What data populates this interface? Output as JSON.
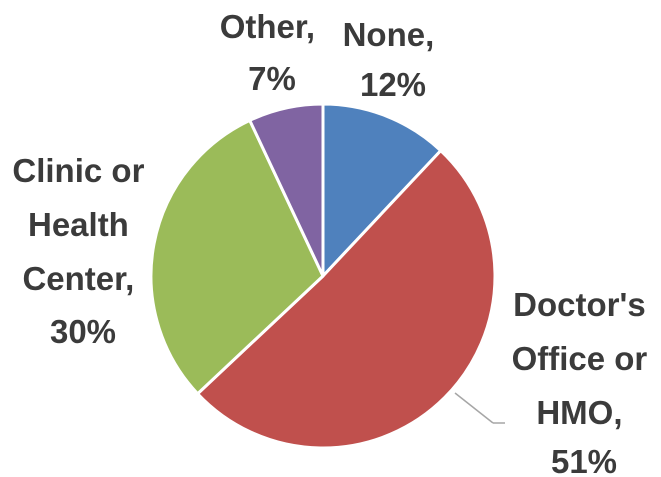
{
  "chart_data": {
    "type": "pie",
    "title": "",
    "start_angle_deg": 0,
    "direction": "clockwise",
    "slices": [
      {
        "label": "None",
        "value": 12,
        "label_text": "12%",
        "color": "#4f81bd"
      },
      {
        "label": "Doctor's Office or HMO",
        "value": 51,
        "label_text": "51%",
        "color": "#c0504d"
      },
      {
        "label": "Clinic or Health Center",
        "value": 30,
        "label_text": "30%",
        "color": "#9bbb59"
      },
      {
        "label": "Other",
        "value": 7,
        "label_text": "7%",
        "color": "#8064a2"
      }
    ],
    "labels_display": {
      "none": [
        "None,",
        "12%"
      ],
      "doctor": [
        "Doctor's",
        "Office or",
        "HMO,",
        "51%"
      ],
      "clinic": [
        "Clinic or",
        "Health",
        "Center,",
        "30%"
      ],
      "other": [
        "Other,",
        "7%"
      ]
    },
    "legend": "none",
    "leader_line_color": "#a6a6a6",
    "slice_border_color": "#ffffff"
  }
}
